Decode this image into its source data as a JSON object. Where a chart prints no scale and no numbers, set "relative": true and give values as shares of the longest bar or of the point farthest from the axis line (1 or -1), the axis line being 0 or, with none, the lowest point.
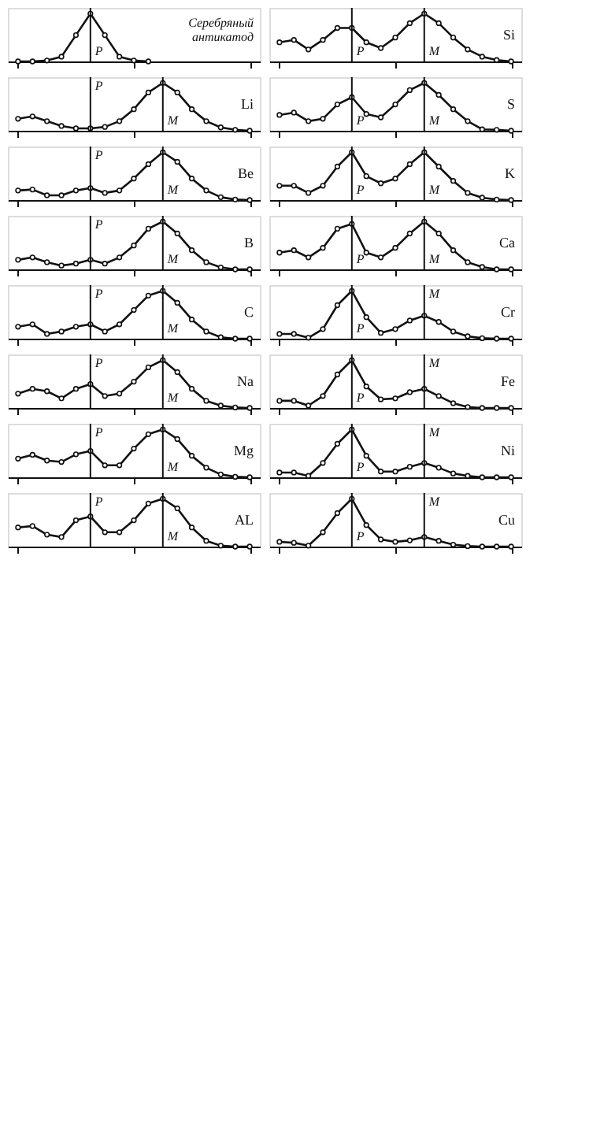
{
  "chart_data": [
    {
      "type": "line",
      "relative": true,
      "categories": [
        null,
        null,
        null,
        null,
        null,
        null,
        null,
        null,
        null,
        null,
        null,
        null,
        null,
        null,
        null,
        null,
        null
      ],
      "tick_labels": false,
      "marker": "circle",
      "line_style": "solid",
      "series": [
        {
          "name": "Серебряный антикатод",
          "color": "#111111",
          "values": [
            0,
            0,
            0.02,
            0.1,
            0.55,
            1,
            0.55,
            0.1,
            0.02,
            0,
            null,
            null,
            null,
            null,
            null,
            null,
            null
          ]
        }
      ],
      "annotations": [
        "P"
      ]
    },
    {
      "type": "line",
      "relative": true,
      "categories": [
        null,
        null,
        null,
        null,
        null,
        null,
        null,
        null,
        null,
        null,
        null,
        null,
        null,
        null,
        null,
        null,
        null
      ],
      "tick_labels": false,
      "marker": "circle",
      "line_style": "solid",
      "series": [
        {
          "name": "Si",
          "color": "#111111",
          "values": [
            0.4,
            0.45,
            0.25,
            0.45,
            0.7,
            0.7,
            0.4,
            0.28,
            0.5,
            0.8,
            1,
            0.8,
            0.5,
            0.25,
            0.1,
            0.03,
            0
          ]
        }
      ],
      "annotations": [
        "P",
        "M"
      ]
    },
    {
      "type": "line",
      "relative": true,
      "categories": [
        null,
        null,
        null,
        null,
        null,
        null,
        null,
        null,
        null,
        null,
        null,
        null,
        null,
        null,
        null,
        null,
        null
      ],
      "tick_labels": false,
      "marker": "circle",
      "line_style": "solid",
      "series": [
        {
          "name": "Li",
          "color": "#111111",
          "values": [
            0.25,
            0.3,
            0.2,
            0.1,
            0.05,
            0.05,
            0.08,
            0.2,
            0.45,
            0.8,
            1,
            0.8,
            0.45,
            0.2,
            0.07,
            0.02,
            0
          ]
        }
      ],
      "annotations": [
        "P",
        "M"
      ]
    },
    {
      "type": "line",
      "relative": true,
      "categories": [
        null,
        null,
        null,
        null,
        null,
        null,
        null,
        null,
        null,
        null,
        null,
        null,
        null,
        null,
        null,
        null,
        null
      ],
      "tick_labels": false,
      "marker": "circle",
      "line_style": "solid",
      "series": [
        {
          "name": "S",
          "color": "#111111",
          "values": [
            0.33,
            0.38,
            0.2,
            0.25,
            0.55,
            0.7,
            0.35,
            0.28,
            0.55,
            0.85,
            1,
            0.75,
            0.45,
            0.2,
            0.03,
            0.02,
            0
          ]
        }
      ],
      "annotations": [
        "P",
        "M"
      ]
    },
    {
      "type": "line",
      "relative": true,
      "categories": [
        null,
        null,
        null,
        null,
        null,
        null,
        null,
        null,
        null,
        null,
        null,
        null,
        null,
        null,
        null,
        null,
        null
      ],
      "tick_labels": false,
      "marker": "circle",
      "line_style": "solid",
      "series": [
        {
          "name": "Be",
          "color": "#111111",
          "values": [
            0.2,
            0.22,
            0.1,
            0.1,
            0.2,
            0.25,
            0.15,
            0.2,
            0.45,
            0.75,
            1,
            0.8,
            0.45,
            0.2,
            0.06,
            0.01,
            0
          ]
        }
      ],
      "annotations": [
        "P",
        "M"
      ]
    },
    {
      "type": "line",
      "relative": true,
      "categories": [
        null,
        null,
        null,
        null,
        null,
        null,
        null,
        null,
        null,
        null,
        null,
        null,
        null,
        null,
        null,
        null,
        null
      ],
      "tick_labels": false,
      "marker": "circle",
      "line_style": "solid",
      "series": [
        {
          "name": "K",
          "color": "#111111",
          "values": [
            0.3,
            0.3,
            0.15,
            0.3,
            0.7,
            1,
            0.5,
            0.35,
            0.45,
            0.75,
            1,
            0.7,
            0.4,
            0.15,
            0.05,
            0.01,
            0
          ]
        }
      ],
      "annotations": [
        "P",
        "M"
      ]
    },
    {
      "type": "line",
      "relative": true,
      "categories": [
        null,
        null,
        null,
        null,
        null,
        null,
        null,
        null,
        null,
        null,
        null,
        null,
        null,
        null,
        null,
        null,
        null
      ],
      "tick_labels": false,
      "marker": "circle",
      "line_style": "solid",
      "series": [
        {
          "name": "B",
          "color": "#111111",
          "values": [
            0.2,
            0.25,
            0.15,
            0.08,
            0.12,
            0.2,
            0.12,
            0.25,
            0.5,
            0.85,
            1,
            0.75,
            0.4,
            0.15,
            0.04,
            0,
            0
          ]
        }
      ],
      "annotations": [
        "P",
        "M"
      ]
    },
    {
      "type": "line",
      "relative": true,
      "categories": [
        null,
        null,
        null,
        null,
        null,
        null,
        null,
        null,
        null,
        null,
        null,
        null,
        null,
        null,
        null,
        null,
        null
      ],
      "tick_labels": false,
      "marker": "circle",
      "line_style": "solid",
      "series": [
        {
          "name": "Ca",
          "color": "#111111",
          "values": [
            0.35,
            0.4,
            0.25,
            0.45,
            0.85,
            0.95,
            0.35,
            0.25,
            0.45,
            0.75,
            1,
            0.75,
            0.4,
            0.15,
            0.05,
            0,
            0
          ]
        }
      ],
      "annotations": [
        "P",
        "M"
      ]
    },
    {
      "type": "line",
      "relative": true,
      "categories": [
        null,
        null,
        null,
        null,
        null,
        null,
        null,
        null,
        null,
        null,
        null,
        null,
        null,
        null,
        null,
        null,
        null
      ],
      "tick_labels": false,
      "marker": "circle",
      "line_style": "solid",
      "series": [
        {
          "name": "C",
          "color": "#111111",
          "values": [
            0.25,
            0.3,
            0.1,
            0.15,
            0.25,
            0.3,
            0.15,
            0.3,
            0.6,
            0.9,
            1,
            0.75,
            0.4,
            0.15,
            0.03,
            0,
            0
          ]
        }
      ],
      "annotations": [
        "P",
        "M"
      ]
    },
    {
      "type": "line",
      "relative": true,
      "categories": [
        null,
        null,
        null,
        null,
        null,
        null,
        null,
        null,
        null,
        null,
        null,
        null,
        null,
        null,
        null,
        null,
        null
      ],
      "tick_labels": false,
      "marker": "circle",
      "line_style": "solid",
      "series": [
        {
          "name": "Cr",
          "color": "#111111",
          "values": [
            0.1,
            0.1,
            0.02,
            0.2,
            0.7,
            1,
            0.45,
            0.12,
            0.2,
            0.38,
            0.48,
            0.35,
            0.15,
            0.05,
            0.01,
            0,
            0
          ]
        }
      ],
      "annotations": [
        "P",
        "M"
      ]
    },
    {
      "type": "line",
      "relative": true,
      "categories": [
        null,
        null,
        null,
        null,
        null,
        null,
        null,
        null,
        null,
        null,
        null,
        null,
        null,
        null,
        null,
        null,
        null
      ],
      "tick_labels": false,
      "marker": "circle",
      "line_style": "solid",
      "series": [
        {
          "name": "Na",
          "color": "#111111",
          "values": [
            0.3,
            0.4,
            0.35,
            0.2,
            0.4,
            0.5,
            0.25,
            0.3,
            0.55,
            0.85,
            1,
            0.75,
            0.4,
            0.15,
            0.05,
            0.01,
            0
          ]
        }
      ],
      "annotations": [
        "P",
        "M"
      ]
    },
    {
      "type": "line",
      "relative": true,
      "categories": [
        null,
        null,
        null,
        null,
        null,
        null,
        null,
        null,
        null,
        null,
        null,
        null,
        null,
        null,
        null,
        null,
        null
      ],
      "tick_labels": false,
      "marker": "circle",
      "line_style": "solid",
      "series": [
        {
          "name": "Fe",
          "color": "#111111",
          "values": [
            0.15,
            0.15,
            0.05,
            0.25,
            0.7,
            1,
            0.45,
            0.18,
            0.2,
            0.33,
            0.4,
            0.25,
            0.1,
            0.02,
            0,
            0,
            0
          ]
        }
      ],
      "annotations": [
        "P",
        "M"
      ]
    },
    {
      "type": "line",
      "relative": true,
      "categories": [
        null,
        null,
        null,
        null,
        null,
        null,
        null,
        null,
        null,
        null,
        null,
        null,
        null,
        null,
        null,
        null,
        null
      ],
      "tick_labels": false,
      "marker": "circle",
      "line_style": "solid",
      "series": [
        {
          "name": "Mg",
          "color": "#111111",
          "values": [
            0.39,
            0.47,
            0.35,
            0.32,
            0.48,
            0.55,
            0.25,
            0.25,
            0.6,
            0.9,
            1,
            0.8,
            0.45,
            0.2,
            0.06,
            0.01,
            0
          ]
        }
      ],
      "annotations": [
        "P",
        "M"
      ]
    },
    {
      "type": "line",
      "relative": true,
      "categories": [
        null,
        null,
        null,
        null,
        null,
        null,
        null,
        null,
        null,
        null,
        null,
        null,
        null,
        null,
        null,
        null,
        null
      ],
      "tick_labels": false,
      "marker": "circle",
      "line_style": "solid",
      "series": [
        {
          "name": "Ni",
          "color": "#111111",
          "values": [
            0.1,
            0.1,
            0.03,
            0.3,
            0.7,
            1,
            0.45,
            0.12,
            0.12,
            0.22,
            0.3,
            0.2,
            0.08,
            0.03,
            0,
            0,
            0
          ]
        }
      ],
      "annotations": [
        "P",
        "M"
      ]
    },
    {
      "type": "line",
      "relative": true,
      "categories": [
        null,
        null,
        null,
        null,
        null,
        null,
        null,
        null,
        null,
        null,
        null,
        null,
        null,
        null,
        null,
        null,
        null
      ],
      "tick_labels": false,
      "marker": "circle",
      "line_style": "solid",
      "series": [
        {
          "name": "AL",
          "color": "#111111",
          "values": [
            0.4,
            0.43,
            0.25,
            0.2,
            0.55,
            0.63,
            0.3,
            0.3,
            0.55,
            0.9,
            1,
            0.8,
            0.4,
            0.12,
            0.02,
            0,
            0
          ]
        }
      ],
      "annotations": [
        "P",
        "M"
      ]
    },
    {
      "type": "line",
      "relative": true,
      "categories": [
        null,
        null,
        null,
        null,
        null,
        null,
        null,
        null,
        null,
        null,
        null,
        null,
        null,
        null,
        null,
        null,
        null
      ],
      "tick_labels": false,
      "marker": "circle",
      "line_style": "solid",
      "series": [
        {
          "name": "Cu",
          "color": "#111111",
          "values": [
            0.1,
            0.08,
            0.02,
            0.3,
            0.7,
            1,
            0.45,
            0.15,
            0.1,
            0.13,
            0.2,
            0.12,
            0.04,
            0.01,
            0,
            0,
            0
          ]
        }
      ],
      "annotations": [
        "P",
        "M"
      ]
    }
  ]
}
